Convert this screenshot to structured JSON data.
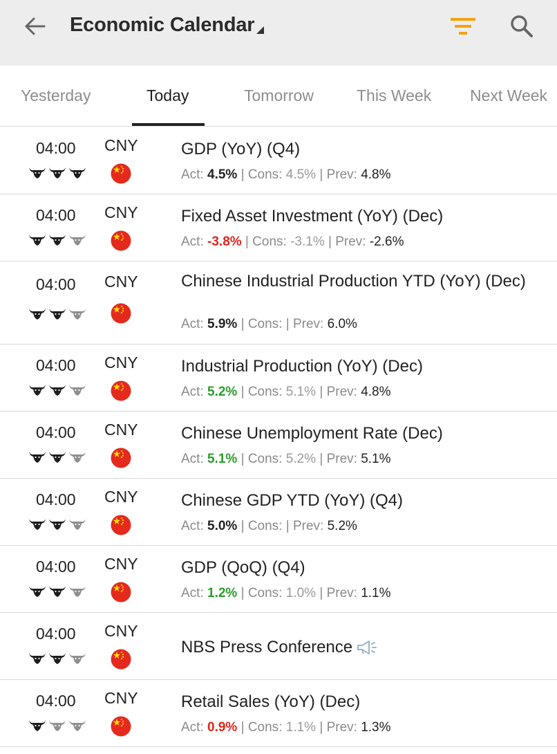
{
  "header": {
    "title": "Economic Calendar"
  },
  "tabs": [
    {
      "label": "Yesterday",
      "active": false
    },
    {
      "label": "Today",
      "active": true
    },
    {
      "label": "Tomorrow",
      "active": false
    },
    {
      "label": "This Week",
      "active": false
    },
    {
      "label": "Next Week",
      "active": false
    }
  ],
  "labels": {
    "act": "Act: ",
    "cons": "Cons: ",
    "prev": "Prev: ",
    "sep": " | "
  },
  "colors": {
    "accent": "#f5a20c",
    "positive": "#2a9d2a",
    "negative": "#e0251b"
  },
  "events": [
    {
      "time": "04:00",
      "currency": "CNY",
      "importance": 3,
      "title": "GDP (YoY) (Q4)",
      "actual": "4.5%",
      "actual_trend": "neutral",
      "consensus": "4.5%",
      "previous": "4.8%"
    },
    {
      "time": "04:00",
      "currency": "CNY",
      "importance": 2,
      "title": "Fixed Asset Investment (YoY) (Dec)",
      "actual": "-3.8%",
      "actual_trend": "negative",
      "consensus": "-3.1%",
      "previous": "-2.6%"
    },
    {
      "time": "04:00",
      "currency": "CNY",
      "importance": 2,
      "title": "Chinese Industrial Production YTD  (YoY) (Dec)",
      "actual": "5.9%",
      "actual_trend": "neutral",
      "consensus": "",
      "previous": "6.0%"
    },
    {
      "time": "04:00",
      "currency": "CNY",
      "importance": 2,
      "title": "Industrial Production (YoY) (Dec)",
      "actual": "5.2%",
      "actual_trend": "positive",
      "consensus": "5.1%",
      "previous": "4.8%"
    },
    {
      "time": "04:00",
      "currency": "CNY",
      "importance": 2,
      "title": "Chinese Unemployment Rate (Dec)",
      "actual": "5.1%",
      "actual_trend": "positive",
      "consensus": "5.2%",
      "previous": "5.1%"
    },
    {
      "time": "04:00",
      "currency": "CNY",
      "importance": 2,
      "title": "Chinese GDP YTD  (YoY) (Q4)",
      "actual": "5.0%",
      "actual_trend": "neutral",
      "consensus": "",
      "previous": "5.2%"
    },
    {
      "time": "04:00",
      "currency": "CNY",
      "importance": 2,
      "title": "GDP (QoQ) (Q4)",
      "actual": "1.2%",
      "actual_trend": "positive",
      "consensus": "1.0%",
      "previous": "1.1%"
    },
    {
      "time": "04:00",
      "currency": "CNY",
      "importance": 2,
      "title": "NBS Press Conference",
      "speech": true
    },
    {
      "time": "04:00",
      "currency": "CNY",
      "importance": 1,
      "title": "Retail Sales (YoY) (Dec)",
      "actual": "0.9%",
      "actual_trend": "negative",
      "consensus": "1.1%",
      "previous": "1.3%"
    }
  ]
}
